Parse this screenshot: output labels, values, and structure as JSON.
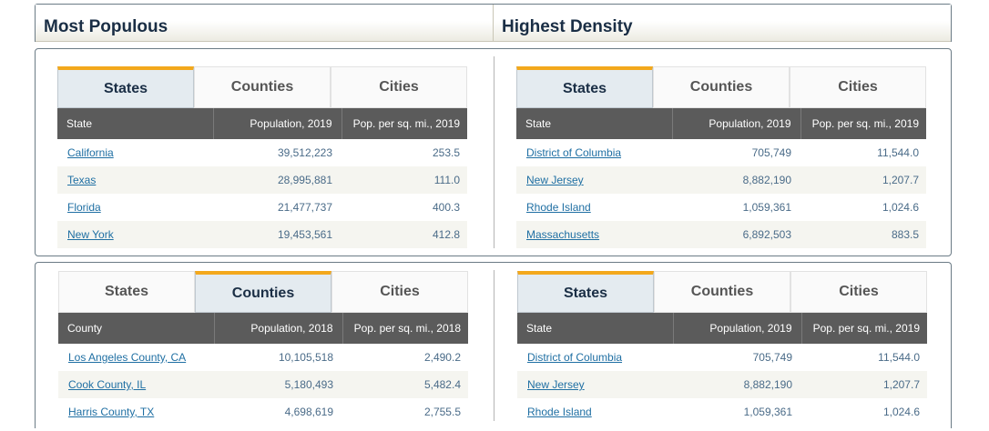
{
  "headers": {
    "left": "Most Populous",
    "right": "Highest Density"
  },
  "tab_labels": [
    "States",
    "Counties",
    "Cities"
  ],
  "widgets": [
    {
      "active_tab": "States",
      "columns": [
        "State",
        "Population, 2019",
        "Pop. per sq. mi., 2019"
      ],
      "rows": [
        [
          "California",
          "39,512,223",
          "253.5"
        ],
        [
          "Texas",
          "28,995,881",
          "111.0"
        ],
        [
          "Florida",
          "21,477,737",
          "400.3"
        ],
        [
          "New York",
          "19,453,561",
          "412.8"
        ]
      ]
    },
    {
      "active_tab": "States",
      "columns": [
        "State",
        "Population, 2019",
        "Pop. per sq. mi., 2019"
      ],
      "rows": [
        [
          "District of Columbia",
          "705,749",
          "11,544.0"
        ],
        [
          "New Jersey",
          "8,882,190",
          "1,207.7"
        ],
        [
          "Rhode Island",
          "1,059,361",
          "1,024.6"
        ],
        [
          "Massachusetts",
          "6,892,503",
          "883.5"
        ]
      ]
    },
    {
      "active_tab": "Counties",
      "columns": [
        "County",
        "Population, 2018",
        "Pop. per sq. mi., 2018"
      ],
      "rows": [
        [
          "Los Angeles County, CA",
          "10,105,518",
          "2,490.2"
        ],
        [
          "Cook County, IL",
          "5,180,493",
          "5,482.4"
        ],
        [
          "Harris County, TX",
          "4,698,619",
          "2,755.5"
        ]
      ]
    },
    {
      "active_tab": "States",
      "columns": [
        "State",
        "Population, 2019",
        "Pop. per sq. mi., 2019"
      ],
      "rows": [
        [
          "District of Columbia",
          "705,749",
          "11,544.0"
        ],
        [
          "New Jersey",
          "8,882,190",
          "1,207.7"
        ],
        [
          "Rhode Island",
          "1,059,361",
          "1,024.6"
        ]
      ]
    }
  ],
  "colors": {
    "active_tab_accent": "#f3a81c",
    "table_header_bg": "#5b5b5b",
    "heading_text": "#1a2e45",
    "link": "#1f6fa3"
  }
}
